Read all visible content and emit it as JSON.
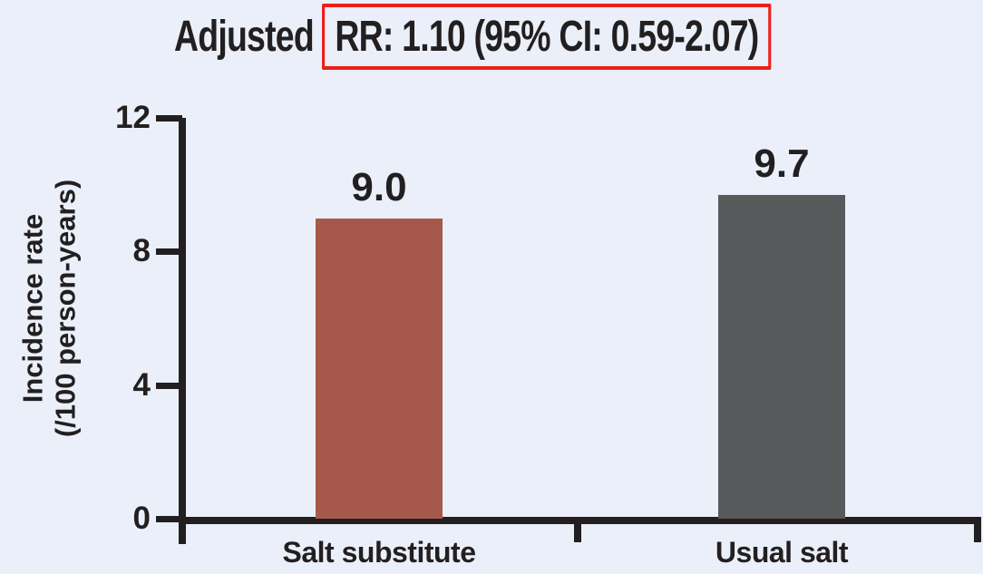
{
  "title": {
    "prefix": "Adjusted",
    "highlighted": "RR: 1.10 (95% CI: 0.59-2.07)"
  },
  "chart_data": {
    "type": "bar",
    "title": "Adjusted RR: 1.10 (95% CI: 0.59-2.07)",
    "categories": [
      "Salt substitute",
      "Usual salt"
    ],
    "values": [
      9.0,
      9.7
    ],
    "bar_labels": [
      "9.0",
      "9.7"
    ],
    "bar_colors": [
      "#a6594b",
      "#58595b"
    ],
    "ylabel_line1": "Incidence rate",
    "ylabel_line2": "(/100 person-years)",
    "xlabel": "",
    "yticks": [
      0,
      4,
      8,
      12
    ],
    "ylim": [
      0,
      12
    ],
    "grid": false,
    "legend": "none"
  },
  "colors": {
    "background": "#ebeff9",
    "axis": "#231f20",
    "text": "#231f20",
    "bar_salt_substitute": "#a6594b",
    "bar_usual_salt": "#58595b",
    "highlight_box_border": "#ed1f1a"
  }
}
